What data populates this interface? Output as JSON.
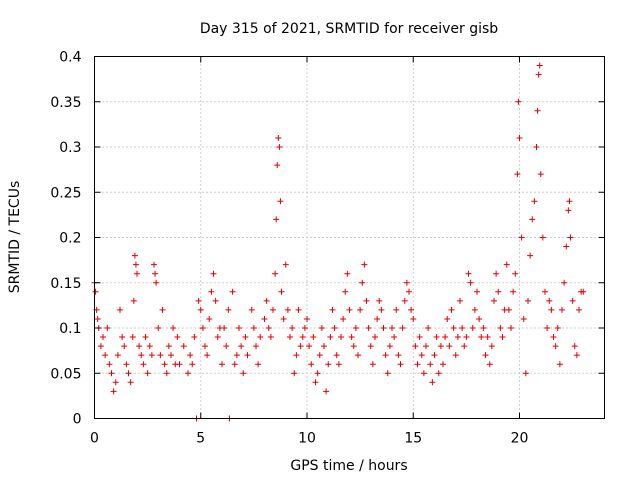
{
  "chart_data": {
    "type": "scatter",
    "title": "Day 315 of 2021, SRMTID for receiver gisb",
    "xlabel": "GPS time / hours",
    "ylabel": "SRMTID / TECUs",
    "xlim": [
      0,
      24
    ],
    "ylim": [
      0,
      0.4
    ],
    "xticks": [
      0,
      5,
      10,
      15,
      20
    ],
    "xtick_labels": [
      "0",
      "5",
      "10",
      "15",
      "20"
    ],
    "yticks": [
      0,
      0.05,
      0.1,
      0.15,
      0.2,
      0.25,
      0.3,
      0.35,
      0.4
    ],
    "ytick_labels": [
      "0",
      "0.05",
      "0.1",
      "0.15",
      "0.2",
      "0.25",
      "0.3",
      "0.35",
      "0.4"
    ],
    "grid": true,
    "legend": "none",
    "marker": "plus",
    "color": "#e00000",
    "series": [
      {
        "points": [
          [
            0.0,
            0.15
          ],
          [
            0.05,
            0.14
          ],
          [
            0.1,
            0.12
          ],
          [
            0.15,
            0.11
          ],
          [
            0.2,
            0.1
          ],
          [
            0.3,
            0.08
          ],
          [
            0.4,
            0.09
          ],
          [
            0.5,
            0.07
          ],
          [
            0.6,
            0.1
          ],
          [
            0.7,
            0.06
          ],
          [
            0.8,
            0.05
          ],
          [
            0.9,
            0.03
          ],
          [
            1.0,
            0.04
          ],
          [
            1.1,
            0.07
          ],
          [
            1.2,
            0.12
          ],
          [
            1.3,
            0.09
          ],
          [
            1.4,
            0.08
          ],
          [
            1.5,
            0.06
          ],
          [
            1.6,
            0.05
          ],
          [
            1.7,
            0.04
          ],
          [
            1.8,
            0.09
          ],
          [
            1.85,
            0.13
          ],
          [
            1.9,
            0.18
          ],
          [
            1.95,
            0.17
          ],
          [
            2.0,
            0.16
          ],
          [
            2.1,
            0.08
          ],
          [
            2.2,
            0.07
          ],
          [
            2.3,
            0.06
          ],
          [
            2.4,
            0.09
          ],
          [
            2.5,
            0.05
          ],
          [
            2.6,
            0.08
          ],
          [
            2.7,
            0.07
          ],
          [
            2.8,
            0.17
          ],
          [
            2.85,
            0.16
          ],
          [
            2.9,
            0.15
          ],
          [
            3.0,
            0.1
          ],
          [
            3.1,
            0.07
          ],
          [
            3.2,
            0.12
          ],
          [
            3.3,
            0.06
          ],
          [
            3.4,
            0.05
          ],
          [
            3.5,
            0.08
          ],
          [
            3.6,
            0.07
          ],
          [
            3.7,
            0.1
          ],
          [
            3.8,
            0.06
          ],
          [
            3.9,
            0.09
          ],
          [
            4.0,
            0.06
          ],
          [
            4.2,
            0.08
          ],
          [
            4.4,
            0.05
          ],
          [
            4.5,
            0.07
          ],
          [
            4.6,
            0.06
          ],
          [
            4.7,
            0.09
          ],
          [
            4.8,
            0.0
          ],
          [
            4.9,
            0.13
          ],
          [
            5.0,
            0.12
          ],
          [
            5.1,
            0.1
          ],
          [
            5.2,
            0.08
          ],
          [
            5.3,
            0.07
          ],
          [
            5.4,
            0.11
          ],
          [
            5.5,
            0.14
          ],
          [
            5.6,
            0.16
          ],
          [
            5.7,
            0.13
          ],
          [
            5.8,
            0.09
          ],
          [
            5.9,
            0.1
          ],
          [
            6.0,
            0.06
          ],
          [
            6.1,
            0.1
          ],
          [
            6.2,
            0.08
          ],
          [
            6.3,
            0.12
          ],
          [
            6.35,
            0.0
          ],
          [
            6.5,
            0.14
          ],
          [
            6.6,
            0.06
          ],
          [
            6.7,
            0.07
          ],
          [
            6.8,
            0.1
          ],
          [
            6.9,
            0.08
          ],
          [
            7.0,
            0.05
          ],
          [
            7.1,
            0.09
          ],
          [
            7.2,
            0.07
          ],
          [
            7.4,
            0.12
          ],
          [
            7.5,
            0.1
          ],
          [
            7.6,
            0.08
          ],
          [
            7.7,
            0.06
          ],
          [
            7.8,
            0.09
          ],
          [
            8.0,
            0.11
          ],
          [
            8.1,
            0.13
          ],
          [
            8.2,
            0.1
          ],
          [
            8.3,
            0.09
          ],
          [
            8.4,
            0.12
          ],
          [
            8.5,
            0.16
          ],
          [
            8.55,
            0.22
          ],
          [
            8.6,
            0.28
          ],
          [
            8.65,
            0.31
          ],
          [
            8.7,
            0.3
          ],
          [
            8.75,
            0.24
          ],
          [
            8.8,
            0.14
          ],
          [
            8.9,
            0.11
          ],
          [
            9.0,
            0.17
          ],
          [
            9.1,
            0.12
          ],
          [
            9.2,
            0.09
          ],
          [
            9.3,
            0.1
          ],
          [
            9.4,
            0.05
          ],
          [
            9.5,
            0.07
          ],
          [
            9.6,
            0.12
          ],
          [
            9.7,
            0.08
          ],
          [
            9.8,
            0.09
          ],
          [
            9.9,
            0.1
          ],
          [
            10.0,
            0.11
          ],
          [
            10.1,
            0.08
          ],
          [
            10.2,
            0.06
          ],
          [
            10.3,
            0.09
          ],
          [
            10.4,
            0.04
          ],
          [
            10.5,
            0.05
          ],
          [
            10.6,
            0.07
          ],
          [
            10.7,
            0.1
          ],
          [
            10.8,
            0.08
          ],
          [
            10.9,
            0.03
          ],
          [
            11.0,
            0.06
          ],
          [
            11.1,
            0.09
          ],
          [
            11.2,
            0.12
          ],
          [
            11.3,
            0.1
          ],
          [
            11.4,
            0.07
          ],
          [
            11.5,
            0.06
          ],
          [
            11.6,
            0.09
          ],
          [
            11.7,
            0.11
          ],
          [
            11.8,
            0.14
          ],
          [
            11.9,
            0.16
          ],
          [
            12.0,
            0.12
          ],
          [
            12.1,
            0.09
          ],
          [
            12.2,
            0.08
          ],
          [
            12.3,
            0.1
          ],
          [
            12.4,
            0.07
          ],
          [
            12.5,
            0.12
          ],
          [
            12.6,
            0.15
          ],
          [
            12.7,
            0.17
          ],
          [
            12.8,
            0.13
          ],
          [
            12.9,
            0.1
          ],
          [
            13.0,
            0.08
          ],
          [
            13.1,
            0.06
          ],
          [
            13.2,
            0.09
          ],
          [
            13.3,
            0.11
          ],
          [
            13.4,
            0.13
          ],
          [
            13.5,
            0.12
          ],
          [
            13.6,
            0.1
          ],
          [
            13.7,
            0.07
          ],
          [
            13.8,
            0.05
          ],
          [
            13.9,
            0.08
          ],
          [
            14.0,
            0.1
          ],
          [
            14.1,
            0.09
          ],
          [
            14.2,
            0.12
          ],
          [
            14.3,
            0.07
          ],
          [
            14.4,
            0.06
          ],
          [
            14.5,
            0.1
          ],
          [
            14.6,
            0.13
          ],
          [
            14.7,
            0.15
          ],
          [
            14.8,
            0.14
          ],
          [
            14.9,
            0.12
          ],
          [
            15.0,
            0.11
          ],
          [
            15.1,
            0.08
          ],
          [
            15.2,
            0.06
          ],
          [
            15.3,
            0.09
          ],
          [
            15.4,
            0.07
          ],
          [
            15.5,
            0.05
          ],
          [
            15.6,
            0.08
          ],
          [
            15.7,
            0.1
          ],
          [
            15.8,
            0.06
          ],
          [
            15.9,
            0.04
          ],
          [
            16.0,
            0.07
          ],
          [
            16.1,
            0.09
          ],
          [
            16.2,
            0.05
          ],
          [
            16.3,
            0.08
          ],
          [
            16.4,
            0.06
          ],
          [
            16.5,
            0.09
          ],
          [
            16.6,
            0.11
          ],
          [
            16.7,
            0.08
          ],
          [
            16.8,
            0.12
          ],
          [
            16.9,
            0.1
          ],
          [
            17.0,
            0.07
          ],
          [
            17.1,
            0.09
          ],
          [
            17.2,
            0.13
          ],
          [
            17.3,
            0.1
          ],
          [
            17.4,
            0.08
          ],
          [
            17.5,
            0.09
          ],
          [
            17.6,
            0.16
          ],
          [
            17.7,
            0.15
          ],
          [
            17.8,
            0.1
          ],
          [
            17.9,
            0.12
          ],
          [
            18.0,
            0.14
          ],
          [
            18.1,
            0.11
          ],
          [
            18.2,
            0.09
          ],
          [
            18.3,
            0.1
          ],
          [
            18.4,
            0.07
          ],
          [
            18.5,
            0.09
          ],
          [
            18.6,
            0.06
          ],
          [
            18.7,
            0.08
          ],
          [
            18.8,
            0.13
          ],
          [
            18.9,
            0.16
          ],
          [
            19.0,
            0.14
          ],
          [
            19.1,
            0.1
          ],
          [
            19.2,
            0.09
          ],
          [
            19.3,
            0.12
          ],
          [
            19.4,
            0.17
          ],
          [
            19.5,
            0.12
          ],
          [
            19.6,
            0.1
          ],
          [
            19.7,
            0.14
          ],
          [
            19.8,
            0.16
          ],
          [
            19.9,
            0.27
          ],
          [
            19.95,
            0.35
          ],
          [
            20.0,
            0.31
          ],
          [
            20.1,
            0.2
          ],
          [
            20.2,
            0.11
          ],
          [
            20.3,
            0.05
          ],
          [
            20.4,
            0.13
          ],
          [
            20.5,
            0.18
          ],
          [
            20.6,
            0.22
          ],
          [
            20.7,
            0.24
          ],
          [
            20.8,
            0.3
          ],
          [
            20.85,
            0.34
          ],
          [
            20.9,
            0.38
          ],
          [
            20.95,
            0.39
          ],
          [
            21.0,
            0.27
          ],
          [
            21.1,
            0.2
          ],
          [
            21.2,
            0.14
          ],
          [
            21.3,
            0.1
          ],
          [
            21.4,
            0.13
          ],
          [
            21.5,
            0.12
          ],
          [
            21.6,
            0.09
          ],
          [
            21.7,
            0.08
          ],
          [
            21.8,
            0.1
          ],
          [
            21.9,
            0.06
          ],
          [
            22.0,
            0.12
          ],
          [
            22.1,
            0.15
          ],
          [
            22.2,
            0.19
          ],
          [
            22.3,
            0.23
          ],
          [
            22.35,
            0.24
          ],
          [
            22.4,
            0.2
          ],
          [
            22.5,
            0.13
          ],
          [
            22.6,
            0.08
          ],
          [
            22.7,
            0.07
          ],
          [
            22.8,
            0.12
          ],
          [
            22.9,
            0.14
          ],
          [
            23.0,
            0.14
          ]
        ]
      }
    ]
  }
}
